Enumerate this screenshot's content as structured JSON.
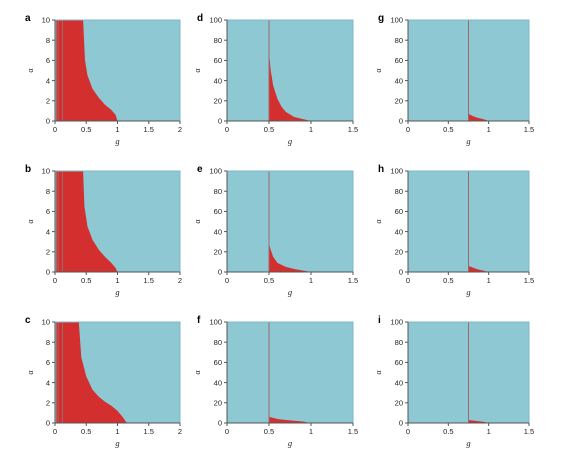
{
  "figure": {
    "colors": {
      "background_region": "#8ec8d3",
      "highlight_region": "#d42f2f",
      "boundary_line": "#9b6b6b",
      "axis": "#555555",
      "frame": "#7fb8c4"
    }
  },
  "chart_data": [
    {
      "panel_label": "a",
      "type": "area",
      "xlabel": "g",
      "ylabel": "α",
      "xlim": [
        0,
        2
      ],
      "ylim": [
        0,
        10
      ],
      "xticks": [
        "0",
        "0.5",
        "1",
        "1.5",
        "2"
      ],
      "yticks": [
        "0",
        "2",
        "4",
        "6",
        "8",
        "10"
      ],
      "vertical_lines": [
        0.05,
        0.12
      ],
      "region": {
        "left_edge_x": 0.02,
        "upper_boundary": [
          [
            0.45,
            10
          ],
          [
            0.48,
            6.0
          ],
          [
            0.52,
            4.5
          ],
          [
            0.6,
            3.2
          ],
          [
            0.7,
            2.3
          ],
          [
            0.8,
            1.6
          ],
          [
            0.9,
            1.1
          ],
          [
            0.97,
            0.6
          ],
          [
            1.0,
            0
          ]
        ]
      }
    },
    {
      "panel_label": "b",
      "type": "area",
      "xlabel": "g",
      "ylabel": "α",
      "xlim": [
        0,
        2
      ],
      "ylim": [
        0,
        10
      ],
      "xticks": [
        "0",
        "0.5",
        "1",
        "1.5",
        "2"
      ],
      "yticks": [
        "0",
        "2",
        "4",
        "6",
        "8",
        "10"
      ],
      "vertical_lines": [
        0.05,
        0.12
      ],
      "region": {
        "left_edge_x": 0.02,
        "upper_boundary": [
          [
            0.45,
            10
          ],
          [
            0.47,
            6.5
          ],
          [
            0.52,
            4.5
          ],
          [
            0.6,
            3.2
          ],
          [
            0.7,
            2.2
          ],
          [
            0.8,
            1.5
          ],
          [
            0.9,
            0.9
          ],
          [
            0.97,
            0.4
          ],
          [
            1.0,
            0
          ]
        ]
      }
    },
    {
      "panel_label": "c",
      "type": "area",
      "xlabel": "g",
      "ylabel": "α",
      "xlim": [
        0,
        2
      ],
      "ylim": [
        0,
        10
      ],
      "xticks": [
        "0",
        "0.5",
        "1",
        "1.5",
        "2"
      ],
      "yticks": [
        "0",
        "2",
        "4",
        "6",
        "8",
        "10"
      ],
      "vertical_lines": [
        0.05,
        0.12
      ],
      "region": {
        "left_edge_x": 0.02,
        "upper_boundary": [
          [
            0.38,
            10
          ],
          [
            0.42,
            6.5
          ],
          [
            0.5,
            4.6
          ],
          [
            0.6,
            3.3
          ],
          [
            0.7,
            2.6
          ],
          [
            0.8,
            2.1
          ],
          [
            0.9,
            1.7
          ],
          [
            1.0,
            1.2
          ],
          [
            1.08,
            0.6
          ],
          [
            1.15,
            0
          ]
        ]
      }
    },
    {
      "panel_label": "d",
      "type": "area",
      "xlabel": "g",
      "ylabel": "α",
      "xlim": [
        0,
        1.5
      ],
      "ylim": [
        0,
        100
      ],
      "xticks": [
        "0",
        "0.5",
        "1",
        "1.5"
      ],
      "yticks": [
        "0",
        "20",
        "40",
        "60",
        "80",
        "100"
      ],
      "vertical_lines": [
        0.5
      ],
      "region": {
        "left_edge_x": 0.5,
        "upper_boundary": [
          [
            0.5,
            68
          ],
          [
            0.52,
            50
          ],
          [
            0.55,
            35
          ],
          [
            0.6,
            22
          ],
          [
            0.65,
            14
          ],
          [
            0.7,
            9
          ],
          [
            0.8,
            4
          ],
          [
            0.9,
            2
          ],
          [
            1.0,
            0
          ]
        ]
      }
    },
    {
      "panel_label": "e",
      "type": "area",
      "xlabel": "g",
      "ylabel": "α",
      "xlim": [
        0,
        1.5
      ],
      "ylim": [
        0,
        100
      ],
      "xticks": [
        "0",
        "0.5",
        "1",
        "1.5"
      ],
      "yticks": [
        "0",
        "20",
        "40",
        "60",
        "80",
        "100"
      ],
      "vertical_lines": [
        0.5
      ],
      "region": {
        "left_edge_x": 0.5,
        "upper_boundary": [
          [
            0.5,
            28
          ],
          [
            0.52,
            22
          ],
          [
            0.55,
            15
          ],
          [
            0.6,
            9
          ],
          [
            0.7,
            5
          ],
          [
            0.8,
            3
          ],
          [
            0.9,
            1.5
          ],
          [
            1.0,
            0
          ]
        ]
      }
    },
    {
      "panel_label": "f",
      "type": "area",
      "xlabel": "g",
      "ylabel": "α",
      "xlim": [
        0,
        1.5
      ],
      "ylim": [
        0,
        100
      ],
      "xticks": [
        "0",
        "0.5",
        "1",
        "1.5"
      ],
      "yticks": [
        "0",
        "20",
        "40",
        "60",
        "80",
        "100"
      ],
      "vertical_lines": [
        0.5
      ],
      "region": {
        "left_edge_x": 0.5,
        "upper_boundary": [
          [
            0.5,
            6
          ],
          [
            0.55,
            5
          ],
          [
            0.6,
            4
          ],
          [
            0.7,
            3
          ],
          [
            0.8,
            2.2
          ],
          [
            0.9,
            1.5
          ],
          [
            1.0,
            0
          ]
        ]
      }
    },
    {
      "panel_label": "g",
      "type": "area",
      "xlabel": "g",
      "ylabel": "α",
      "xlim": [
        0,
        1.5
      ],
      "ylim": [
        0,
        100
      ],
      "xticks": [
        "0",
        "0.5",
        "1",
        "1.5"
      ],
      "yticks": [
        "0",
        "20",
        "40",
        "60",
        "80",
        "100"
      ],
      "vertical_lines": [
        0.75
      ],
      "region": {
        "left_edge_x": 0.75,
        "upper_boundary": [
          [
            0.75,
            7
          ],
          [
            0.8,
            5
          ],
          [
            0.85,
            3.5
          ],
          [
            0.9,
            2.5
          ],
          [
            0.95,
            1.5
          ],
          [
            1.0,
            0
          ]
        ]
      }
    },
    {
      "panel_label": "h",
      "type": "area",
      "xlabel": "g",
      "ylabel": "α",
      "xlim": [
        0,
        1.5
      ],
      "ylim": [
        0,
        100
      ],
      "xticks": [
        "0",
        "0.5",
        "1",
        "1.5"
      ],
      "yticks": [
        "0",
        "20",
        "40",
        "60",
        "80",
        "100"
      ],
      "vertical_lines": [
        0.75
      ],
      "region": {
        "left_edge_x": 0.75,
        "upper_boundary": [
          [
            0.75,
            6
          ],
          [
            0.8,
            4.5
          ],
          [
            0.85,
            3
          ],
          [
            0.9,
            2
          ],
          [
            0.95,
            1
          ],
          [
            1.0,
            0
          ]
        ]
      }
    },
    {
      "panel_label": "i",
      "type": "area",
      "xlabel": "g",
      "ylabel": "α",
      "xlim": [
        0,
        1.5
      ],
      "ylim": [
        0,
        100
      ],
      "xticks": [
        "0",
        "0.5",
        "1",
        "1.5"
      ],
      "yticks": [
        "0",
        "20",
        "40",
        "60",
        "80",
        "100"
      ],
      "vertical_lines": [
        0.75
      ],
      "region": {
        "left_edge_x": 0.75,
        "upper_boundary": [
          [
            0.75,
            3
          ],
          [
            0.8,
            2.5
          ],
          [
            0.85,
            2
          ],
          [
            0.9,
            1.5
          ],
          [
            0.95,
            1
          ],
          [
            1.0,
            0
          ]
        ]
      }
    }
  ]
}
